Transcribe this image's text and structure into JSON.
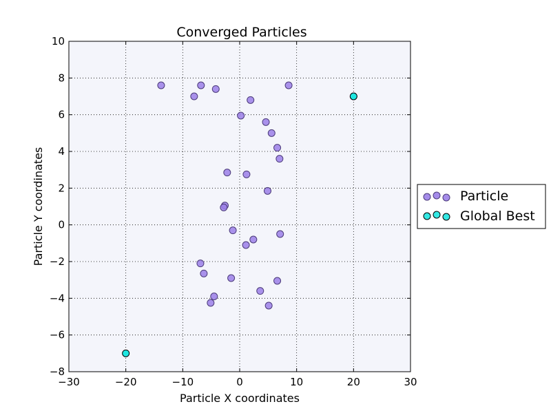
{
  "chart_data": {
    "type": "scatter",
    "title": "Converged Particles",
    "xlabel": "Particle X coordinates",
    "ylabel": "Particle Y coordinates",
    "xlim": [
      -30,
      30
    ],
    "ylim": [
      -8,
      10
    ],
    "xticks": [
      -30,
      -20,
      -10,
      0,
      10,
      20,
      30
    ],
    "yticks": [
      -8,
      -6,
      -4,
      -2,
      0,
      2,
      4,
      6,
      8,
      10
    ],
    "xtick_labels": [
      "−30",
      "−20",
      "−10",
      "0",
      "10",
      "20",
      "30"
    ],
    "ytick_labels": [
      "−8",
      "−6",
      "−4",
      "−2",
      "0",
      "2",
      "4",
      "6",
      "8",
      "10"
    ],
    "grid": true,
    "legend_position": "outside-right",
    "plot_background": "#f4f5fb",
    "series": [
      {
        "name": "Particle",
        "color": "#9b7fe8",
        "edge_color": "#4a3a78",
        "points": [
          [
            -13.8,
            7.6
          ],
          [
            -6.8,
            7.6
          ],
          [
            -4.2,
            7.4
          ],
          [
            -8.0,
            7.0
          ],
          [
            8.6,
            7.6
          ],
          [
            1.9,
            6.8
          ],
          [
            0.2,
            5.95
          ],
          [
            4.6,
            5.6
          ],
          [
            5.6,
            5.0
          ],
          [
            6.6,
            4.2
          ],
          [
            7.0,
            3.6
          ],
          [
            -2.2,
            2.85
          ],
          [
            1.2,
            2.75
          ],
          [
            4.9,
            1.85
          ],
          [
            -2.6,
            1.05
          ],
          [
            -2.8,
            0.95
          ],
          [
            -1.2,
            -0.3
          ],
          [
            7.1,
            -0.5
          ],
          [
            2.4,
            -0.8
          ],
          [
            1.1,
            -1.1
          ],
          [
            -6.9,
            -2.1
          ],
          [
            -6.3,
            -2.65
          ],
          [
            -1.5,
            -2.9
          ],
          [
            6.6,
            -3.05
          ],
          [
            3.6,
            -3.6
          ],
          [
            -4.5,
            -3.9
          ],
          [
            -5.1,
            -4.25
          ],
          [
            5.1,
            -4.4
          ],
          [
            20.0,
            7.0
          ]
        ]
      },
      {
        "name": "Global Best",
        "color": "#1ee6e0",
        "edge_color": "#000000",
        "points": [
          [
            20.0,
            7.0
          ],
          [
            -20.0,
            -7.0
          ]
        ]
      }
    ]
  }
}
